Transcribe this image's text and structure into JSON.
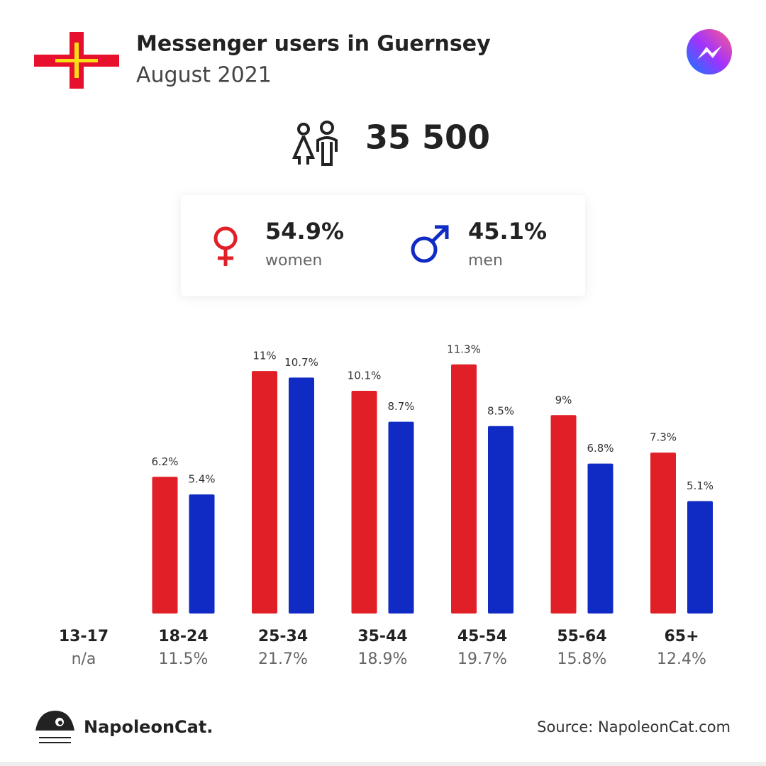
{
  "header": {
    "title": "Messenger users in Guernsey",
    "subtitle": "August 2021"
  },
  "summary": {
    "total_users": "35 500",
    "women_share": "54.9%",
    "women_label": "women",
    "men_share": "45.1%",
    "men_label": "men"
  },
  "chart_data": {
    "type": "bar",
    "categories": [
      "13-17",
      "18-24",
      "25-34",
      "35-44",
      "45-54",
      "55-64",
      "65+"
    ],
    "category_totals": [
      "n/a",
      "11.5%",
      "21.7%",
      "18.9%",
      "19.7%",
      "15.8%",
      "12.4%"
    ],
    "series": [
      {
        "name": "women",
        "color": "#e01f26",
        "values": [
          null,
          6.2,
          11,
          10.1,
          11.3,
          9,
          7.3
        ],
        "value_labels": [
          null,
          "6.2%",
          "11%",
          "10.1%",
          "11.3%",
          "9%",
          "7.3%"
        ]
      },
      {
        "name": "men",
        "color": "#0f2bc3",
        "values": [
          null,
          5.4,
          10.7,
          8.7,
          8.5,
          6.8,
          5.1
        ],
        "value_labels": [
          null,
          "5.4%",
          "10.7%",
          "8.7%",
          "8.5%",
          "6.8%",
          "5.1%"
        ]
      }
    ],
    "ylim": [
      0,
      12
    ]
  },
  "footer": {
    "brand": "NapoleonCat.",
    "source": "Source: NapoleonCat.com"
  }
}
